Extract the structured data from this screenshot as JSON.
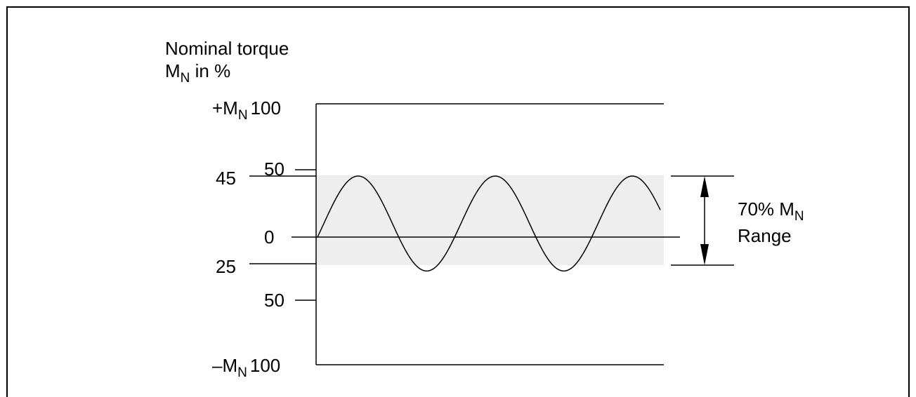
{
  "axis_title": {
    "line1": "Nominal torque",
    "line2_prefix": "M",
    "line2_sub": "N",
    "line2_suffix": " in %"
  },
  "levels": {
    "plus_max": {
      "prefix": "+M",
      "sub": "N",
      "value": "100"
    },
    "plus_50": "50",
    "plus_45": "45",
    "zero": "0",
    "minus_25": "25",
    "minus_50": "50",
    "minus_max": {
      "prefix": "–M",
      "sub": "N",
      "value": "100"
    }
  },
  "range_label": {
    "line1_prefix": "70% M",
    "line1_sub": "N",
    "line2": "Range"
  },
  "signal": {
    "type": "sine",
    "cycles": 2.5,
    "peak_percent": 45,
    "trough_percent": -25,
    "band_percent": [
      -25,
      45
    ],
    "range_percent": 70
  },
  "colors": {
    "band": "#eeeeee",
    "line": "#000000",
    "frame": "#000000"
  }
}
